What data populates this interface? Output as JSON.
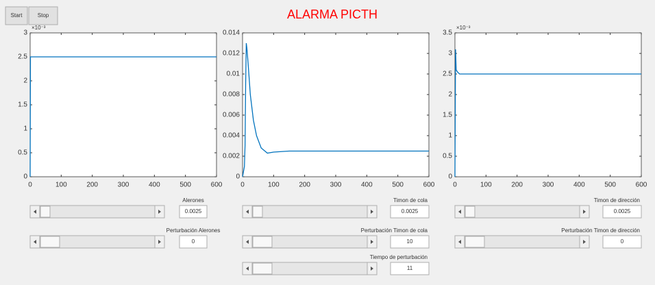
{
  "buttons": [
    "Start",
    "Stop"
  ],
  "title": "ALARMA PICTH",
  "chart_data": [
    {
      "type": "line",
      "y_multiplier": "×10⁻³",
      "color": "#0072bd",
      "x": [
        0,
        1,
        600
      ],
      "values": [
        0,
        2.5,
        2.5
      ],
      "xlim": [
        0,
        600
      ],
      "xticks": [
        0,
        100,
        200,
        300,
        400,
        500,
        600
      ],
      "ylim": [
        0,
        3
      ],
      "yticks": [
        0,
        0.5,
        1,
        1.5,
        2,
        2.5,
        3
      ]
    },
    {
      "type": "line",
      "color": "#0072bd",
      "x": [
        0,
        3,
        6,
        8,
        10,
        12,
        14,
        18,
        25,
        35,
        45,
        60,
        80,
        100,
        150,
        600
      ],
      "values": [
        0,
        0.0005,
        0.001,
        0.003,
        0.009,
        0.013,
        0.0125,
        0.011,
        0.008,
        0.0055,
        0.004,
        0.0028,
        0.0023,
        0.0024,
        0.0025,
        0.0025
      ],
      "xlim": [
        0,
        600
      ],
      "xticks": [
        0,
        100,
        200,
        300,
        400,
        500,
        600
      ],
      "ylim": [
        0,
        0.014
      ],
      "yticks": [
        0,
        0.002,
        0.004,
        0.006,
        0.008,
        0.01,
        0.012,
        0.014
      ]
    },
    {
      "type": "line",
      "y_multiplier": "×10⁻³",
      "color": "#0072bd",
      "x": [
        0,
        2,
        4,
        8,
        15,
        30,
        600
      ],
      "values": [
        0,
        3.1,
        2.6,
        2.55,
        2.5,
        2.5,
        2.5
      ],
      "xlim": [
        0,
        600
      ],
      "xticks": [
        0,
        100,
        200,
        300,
        400,
        500,
        600
      ],
      "ylim": [
        0,
        3.5
      ],
      "yticks": [
        0,
        0.5,
        1,
        1.5,
        2,
        2.5,
        3,
        3.5
      ]
    }
  ],
  "controls": [
    [
      {
        "label": "Alerones",
        "value": "0.0025"
      },
      {
        "label": "Perturbación Alerones",
        "value": "0"
      }
    ],
    [
      {
        "label": "Timon de cola",
        "value": "0.0025"
      },
      {
        "label": "Perturbación Timon de cola",
        "value": "10"
      },
      {
        "label": "Tiempo de perturbación",
        "value": "11"
      }
    ],
    [
      {
        "label": "Timon de dirección",
        "value": "0.0025"
      },
      {
        "label": "Perturbación Timon de dirección",
        "value": "0"
      }
    ]
  ]
}
